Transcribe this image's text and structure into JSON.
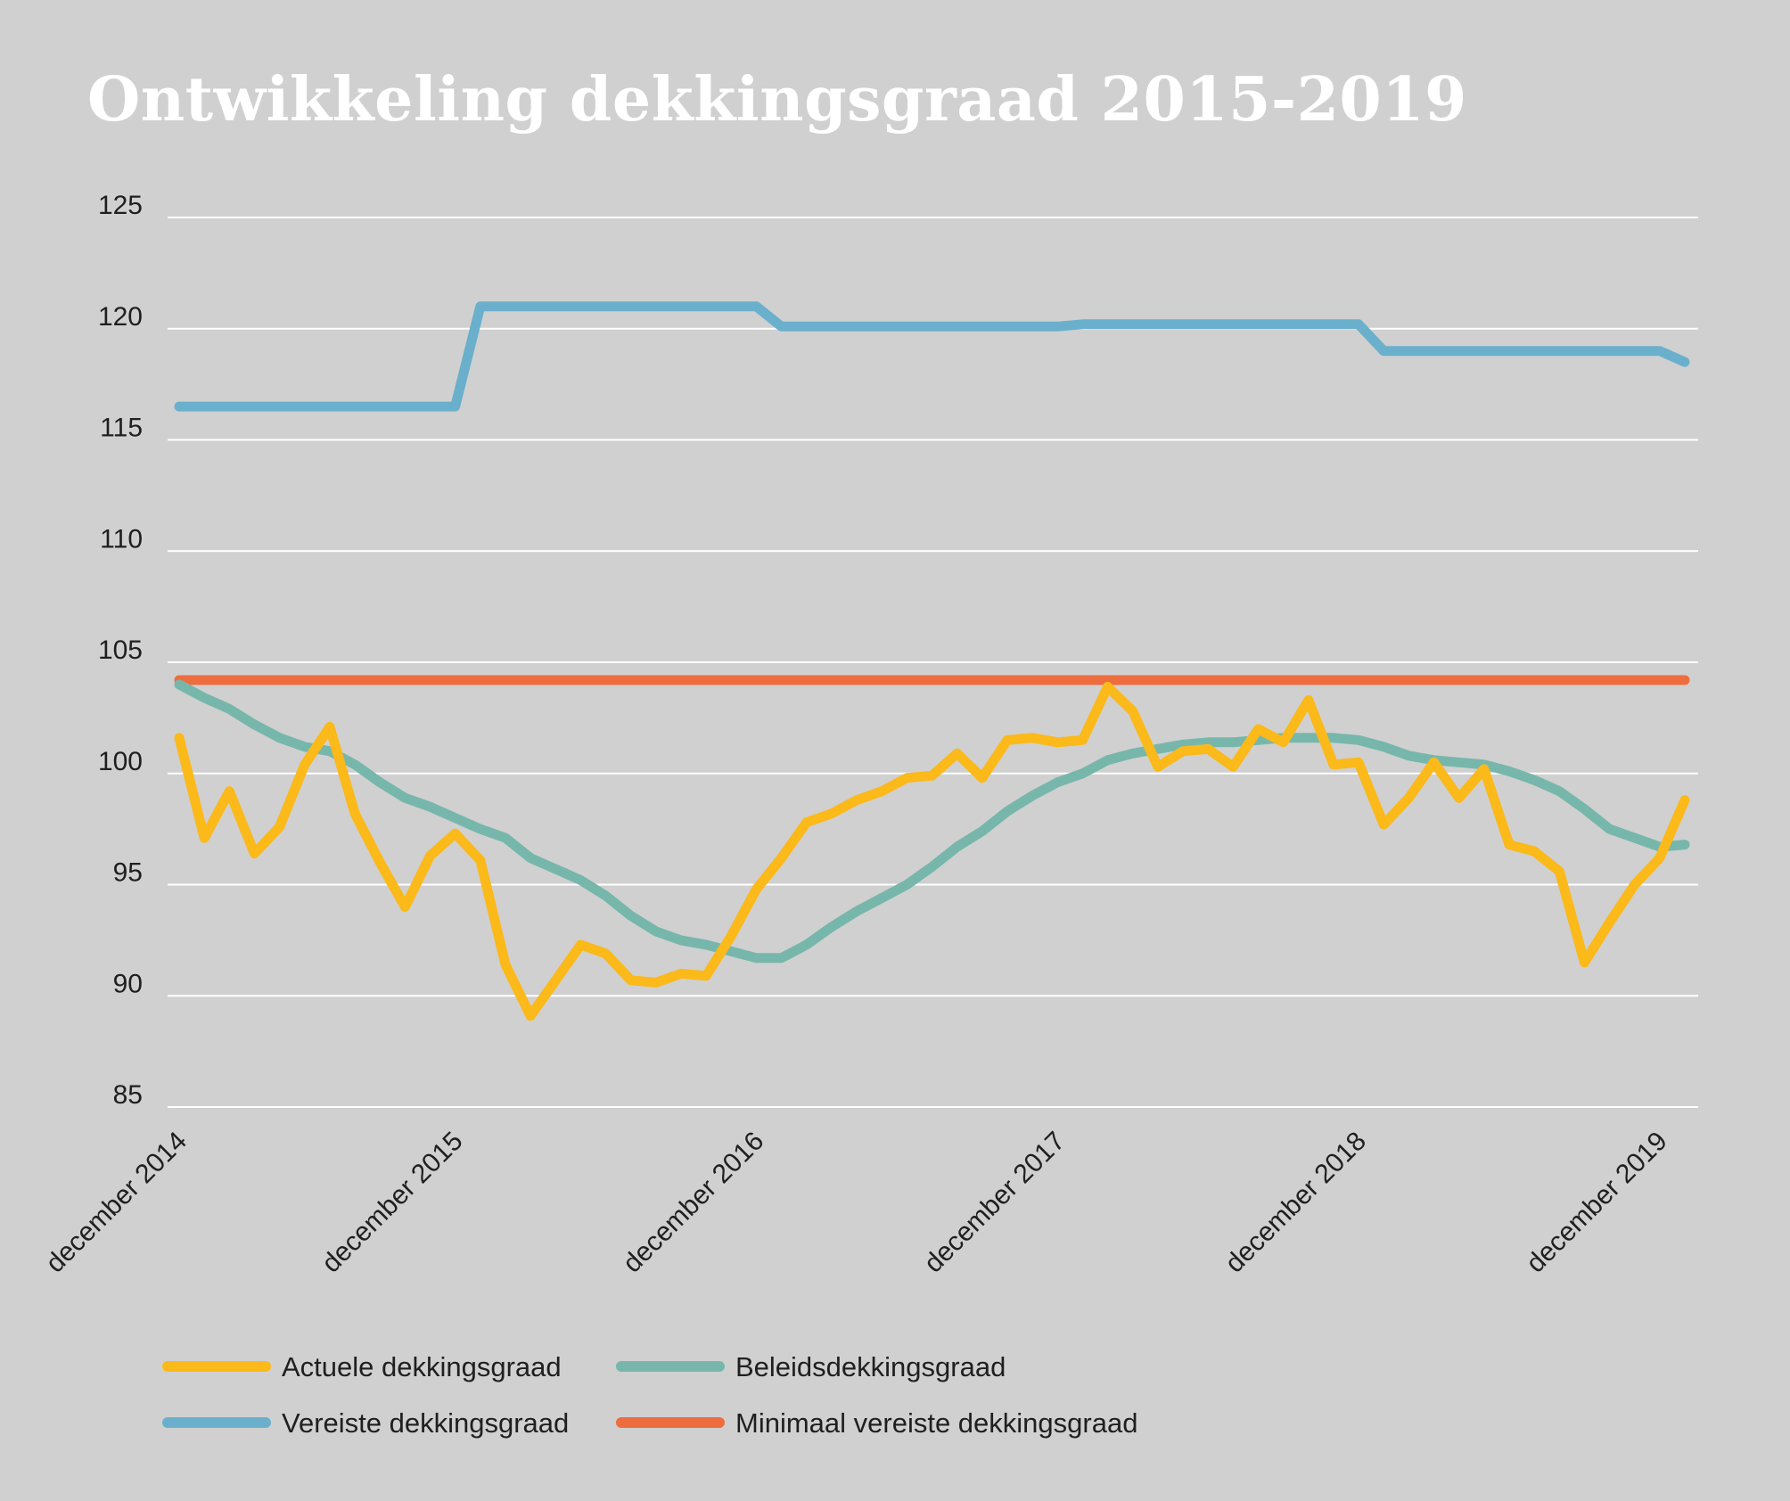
{
  "chart_data": {
    "type": "line",
    "title": "Ontwikkeling dekkingsgraad 2015-2019",
    "xlabel": "",
    "ylabel": "",
    "ylim": [
      85,
      125
    ],
    "yticks": [
      85,
      90,
      95,
      100,
      105,
      110,
      115,
      120,
      125
    ],
    "grid": true,
    "x_tick_labels": [
      "december 2014",
      "december 2015",
      "december 2016",
      "december 2017",
      "december 2018",
      "december 2019"
    ],
    "x_tick_index": [
      0,
      11,
      23,
      35,
      47,
      59
    ],
    "x_period": "monthly, december 2014 - december 2019",
    "legend_position": "bottom",
    "series": [
      {
        "name": "Actuele dekkingsgraad",
        "color": "#fbb91a",
        "values": [
          101.6,
          97.1,
          99.2,
          96.4,
          97.6,
          100.4,
          102.1,
          98.2,
          96.0,
          94.0,
          96.3,
          97.3,
          96.1,
          91.4,
          89.1,
          90.7,
          92.3,
          91.9,
          90.7,
          90.6,
          91.0,
          90.9,
          92.7,
          94.8,
          96.2,
          97.8,
          98.2,
          98.8,
          99.2,
          99.8,
          99.9,
          100.9,
          99.8,
          101.5,
          101.6,
          101.4,
          101.5,
          103.9,
          102.8,
          100.3,
          101.0,
          101.1,
          100.3,
          102.0,
          101.4,
          103.3,
          100.4,
          100.5,
          97.7,
          98.9,
          100.5,
          98.9,
          100.2,
          96.8,
          96.5,
          95.6,
          91.5,
          93.3,
          95.0,
          96.2,
          98.8
        ]
      },
      {
        "name": "Beleidsdekkingsgraad",
        "color": "#77b7ab",
        "values": [
          104.0,
          103.4,
          102.9,
          102.2,
          101.6,
          101.2,
          101.0,
          100.4,
          99.6,
          98.9,
          98.5,
          98.0,
          97.5,
          97.1,
          96.2,
          95.7,
          95.2,
          94.5,
          93.6,
          92.9,
          92.5,
          92.3,
          92.0,
          91.7,
          91.7,
          92.3,
          93.1,
          93.8,
          94.4,
          95.0,
          95.8,
          96.7,
          97.4,
          98.3,
          99.0,
          99.6,
          100.0,
          100.6,
          100.9,
          101.1,
          101.3,
          101.4,
          101.4,
          101.5,
          101.6,
          101.6,
          101.6,
          101.5,
          101.2,
          100.8,
          100.6,
          100.5,
          100.4,
          100.1,
          99.7,
          99.2,
          98.4,
          97.5,
          97.1,
          96.7,
          96.8
        ]
      },
      {
        "name": "Vereiste dekkingsgraad",
        "color": "#6ab0cc",
        "values": [
          116.5,
          116.5,
          116.5,
          116.5,
          116.5,
          116.5,
          116.5,
          116.5,
          116.5,
          116.5,
          116.5,
          116.5,
          121.0,
          121.0,
          121.0,
          121.0,
          121.0,
          121.0,
          121.0,
          121.0,
          121.0,
          121.0,
          121.0,
          121.0,
          120.1,
          120.1,
          120.1,
          120.1,
          120.1,
          120.1,
          120.1,
          120.1,
          120.1,
          120.1,
          120.1,
          120.1,
          120.2,
          120.2,
          120.2,
          120.2,
          120.2,
          120.2,
          120.2,
          120.2,
          120.2,
          120.2,
          120.2,
          120.2,
          119.0,
          119.0,
          119.0,
          119.0,
          119.0,
          119.0,
          119.0,
          119.0,
          119.0,
          119.0,
          119.0,
          119.0,
          118.5
        ]
      },
      {
        "name": "Minimaal vereiste dekkingsgraad",
        "color": "#ee6d3f",
        "values": [
          104.2,
          104.2,
          104.2,
          104.2,
          104.2,
          104.2,
          104.2,
          104.2,
          104.2,
          104.2,
          104.2,
          104.2,
          104.2,
          104.2,
          104.2,
          104.2,
          104.2,
          104.2,
          104.2,
          104.2,
          104.2,
          104.2,
          104.2,
          104.2,
          104.2,
          104.2,
          104.2,
          104.2,
          104.2,
          104.2,
          104.2,
          104.2,
          104.2,
          104.2,
          104.2,
          104.2,
          104.2,
          104.2,
          104.2,
          104.2,
          104.2,
          104.2,
          104.2,
          104.2,
          104.2,
          104.2,
          104.2,
          104.2,
          104.2,
          104.2,
          104.2,
          104.2,
          104.2,
          104.2,
          104.2,
          104.2,
          104.2,
          104.2,
          104.2,
          104.2,
          104.2
        ]
      }
    ],
    "legend": [
      {
        "label": "Actuele dekkingsgraad",
        "series": 0
      },
      {
        "label": "Beleidsdekkingsgraad",
        "series": 1
      },
      {
        "label": "Vereiste dekkingsgraad",
        "series": 2
      },
      {
        "label": "Minimaal vereiste dekkingsgraad",
        "series": 3
      }
    ]
  },
  "colors": {
    "background": "#d0d0d0",
    "gridline": "#ffffff",
    "title": "#ffffff",
    "text": "#1f1f1f"
  }
}
